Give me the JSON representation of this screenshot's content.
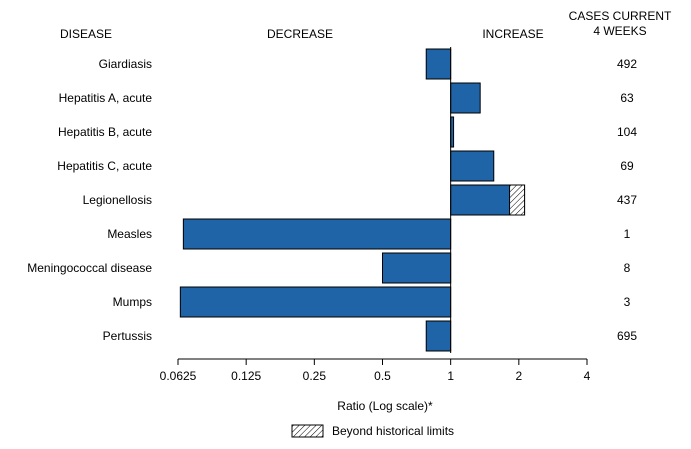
{
  "chart_data": {
    "type": "bar",
    "orientation": "horizontal",
    "headers": {
      "category": "DISEASE",
      "decrease": "DECREASE",
      "increase": "INCREASE",
      "cases_line1": "CASES CURRENT",
      "cases_line2": "4 WEEKS"
    },
    "categories": [
      "Giardiasis",
      "Hepatitis A, acute",
      "Hepatitis B, acute",
      "Hepatitis C, acute",
      "Legionellosis",
      "Measles",
      "Meningococcal disease",
      "Mumps",
      "Pertussis"
    ],
    "ratios": [
      0.78,
      1.35,
      1.03,
      1.55,
      2.12,
      0.066,
      0.5,
      0.064,
      0.78
    ],
    "beyond_historical_limits_from": [
      null,
      null,
      null,
      null,
      1.82,
      null,
      null,
      null,
      null
    ],
    "cases": [
      "492",
      "63",
      "104",
      "69",
      "437",
      "1",
      "8",
      "3",
      "695"
    ],
    "x_scale": "log2",
    "x_ticks": [
      0.0625,
      0.125,
      0.25,
      0.5,
      1,
      2,
      4
    ],
    "x_tick_labels": [
      "0.0625",
      "0.125",
      "0.25",
      "0.5",
      "1",
      "2",
      "4"
    ],
    "xlim": [
      0.0625,
      4
    ],
    "xlabel": "Ratio (Log scale)*",
    "legend": {
      "label": "Beyond historical limits",
      "placement": "bottom"
    },
    "colors": {
      "bar_fill": "#1e64a6",
      "bar_stroke": "#000000",
      "hatch": "#000000"
    }
  }
}
